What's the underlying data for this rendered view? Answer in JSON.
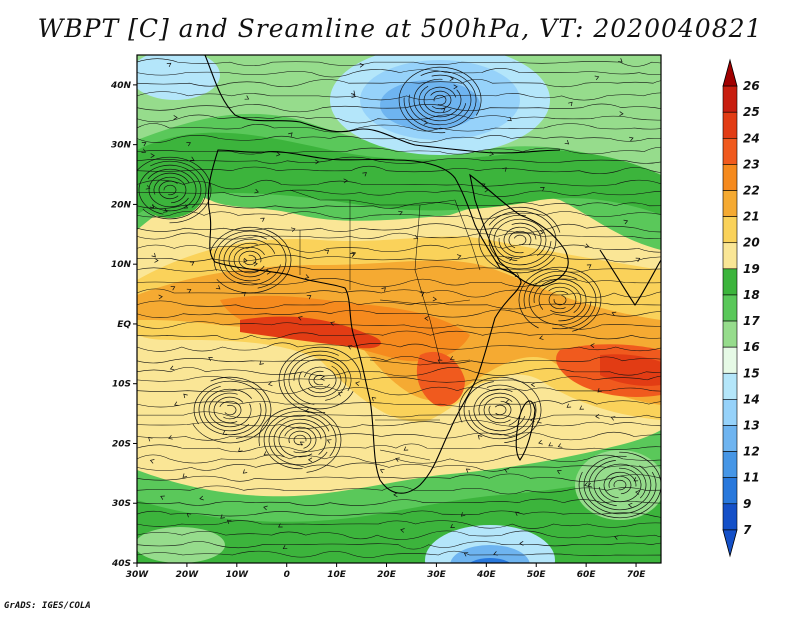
{
  "title": "WBPT [C] and Sreamline at 500hPa, VT: 2020040821",
  "credit": "GrADS: IGES/COLA",
  "map": {
    "variable": "WBPT",
    "units": "C",
    "level": "500hPa",
    "valid_time": "2020040821",
    "lon_range": [
      -30,
      75
    ],
    "lat_range": [
      -40,
      45
    ],
    "lat_ticks": [
      {
        "value": 40,
        "label": "40N"
      },
      {
        "value": 30,
        "label": "30N"
      },
      {
        "value": 20,
        "label": "20N"
      },
      {
        "value": 10,
        "label": "10N"
      },
      {
        "value": 0,
        "label": "EQ"
      },
      {
        "value": -10,
        "label": "10S"
      },
      {
        "value": -20,
        "label": "20S"
      },
      {
        "value": -30,
        "label": "30S"
      },
      {
        "value": -40,
        "label": "40S"
      }
    ],
    "lon_ticks": [
      {
        "value": -30,
        "label": "30W"
      },
      {
        "value": -20,
        "label": "20W"
      },
      {
        "value": -10,
        "label": "10W"
      },
      {
        "value": 0,
        "label": "0"
      },
      {
        "value": 10,
        "label": "10E"
      },
      {
        "value": 20,
        "label": "20E"
      },
      {
        "value": 30,
        "label": "30E"
      },
      {
        "value": 40,
        "label": "40E"
      },
      {
        "value": 50,
        "label": "50E"
      },
      {
        "value": 60,
        "label": "60E"
      },
      {
        "value": 70,
        "label": "70E"
      }
    ]
  },
  "colorbar": {
    "levels": [
      "26",
      "25",
      "24",
      "23",
      "22",
      "21",
      "20",
      "19",
      "18",
      "17",
      "16",
      "15",
      "14",
      "13",
      "12",
      "11",
      "9",
      "7"
    ],
    "colors": [
      "#a00000",
      "#c81e0f",
      "#e23c14",
      "#f05a1e",
      "#f58a1e",
      "#f5aa32",
      "#fad25a",
      "#fae696",
      "#3cb43c",
      "#5ac85a",
      "#96dc8c",
      "#e6fae6",
      "#b4e6fa",
      "#96d2fa",
      "#6eb4f0",
      "#4696e6",
      "#2878dc",
      "#1450c8"
    ]
  }
}
